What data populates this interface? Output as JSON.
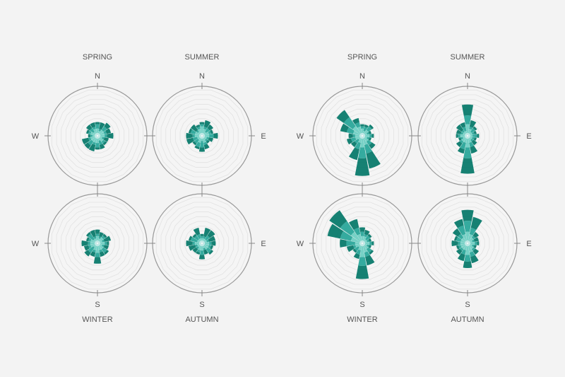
{
  "chart_data": {
    "type": "polar-bar",
    "description_free": true,
    "groups": [
      {
        "panels": [
          {
            "season": "SPRING",
            "compass": {
              "N": "N",
              "E": "",
              "S": "",
              "W": "W"
            },
            "sectors": [
              [
                2,
                4,
                5
              ],
              [
                1,
                2,
                5
              ],
              [
                2,
                4,
                6
              ],
              [
                2,
                3,
                5
              ],
              [
                2,
                3,
                6
              ],
              [
                1,
                2,
                4
              ],
              [
                2,
                3,
                4
              ],
              [
                1,
                3,
                5
              ],
              [
                2,
                4,
                5
              ],
              [
                2,
                3,
                6
              ],
              [
                2,
                4,
                6
              ],
              [
                2,
                3,
                6
              ],
              [
                1,
                2,
                3
              ],
              [
                2,
                3,
                4
              ],
              [
                1,
                3,
                5
              ],
              [
                2,
                3,
                5
              ]
            ]
          },
          {
            "season": "SUMMER",
            "compass": {
              "N": "N",
              "E": "E",
              "S": "",
              "W": ""
            },
            "sectors": [
              [
                3,
                4,
                5
              ],
              [
                2,
                3,
                6
              ],
              [
                1,
                3,
                5
              ],
              [
                2,
                3,
                4
              ],
              [
                2,
                4,
                6
              ],
              [
                1,
                2,
                4
              ],
              [
                1,
                2,
                3
              ],
              [
                2,
                3,
                5
              ],
              [
                1,
                4,
                6
              ],
              [
                2,
                4,
                5
              ],
              [
                1,
                3,
                4
              ],
              [
                1,
                3,
                6
              ],
              [
                2,
                3,
                6
              ],
              [
                2,
                4,
                5
              ],
              [
                1,
                2,
                5
              ],
              [
                2,
                3,
                4
              ]
            ]
          },
          {
            "season": "WINTER",
            "compass": {
              "N": "",
              "E": "",
              "S": "S",
              "W": "W"
            },
            "sectors": [
              [
                2,
                3,
                5
              ],
              [
                1,
                2,
                4
              ],
              [
                2,
                3,
                4
              ],
              [
                1,
                2,
                5
              ],
              [
                2,
                3,
                4
              ],
              [
                1,
                2,
                4
              ],
              [
                2,
                4,
                5
              ],
              [
                2,
                3,
                5
              ],
              [
                3,
                5,
                8
              ],
              [
                2,
                3,
                5
              ],
              [
                1,
                4,
                6
              ],
              [
                2,
                3,
                5
              ],
              [
                2,
                3,
                6
              ],
              [
                2,
                3,
                4
              ],
              [
                1,
                4,
                5
              ],
              [
                1,
                2,
                5
              ]
            ]
          },
          {
            "season": "AUTUMN",
            "compass": {
              "N": "",
              "E": "E",
              "S": "S",
              "W": ""
            },
            "sectors": [
              [
                1,
                2,
                3
              ],
              [
                1,
                2,
                6
              ],
              [
                1,
                3,
                6
              ],
              [
                1,
                2,
                5
              ],
              [
                2,
                3,
                5
              ],
              [
                2,
                3,
                4
              ],
              [
                2,
                4,
                5
              ],
              [
                1,
                2,
                4
              ],
              [
                2,
                4,
                6
              ],
              [
                2,
                3,
                4
              ],
              [
                1,
                2,
                4
              ],
              [
                1,
                2,
                5
              ],
              [
                2,
                3,
                6
              ],
              [
                1,
                4,
                5
              ],
              [
                1,
                3,
                4
              ],
              [
                1,
                3,
                6
              ]
            ]
          }
        ]
      },
      {
        "panels": [
          {
            "season": "SPRING",
            "compass": {
              "N": "N",
              "E": "",
              "S": "",
              "W": "W"
            },
            "sectors": [
              [
                2,
                3,
                4
              ],
              [
                1,
                3,
                4
              ],
              [
                2,
                4,
                5
              ],
              [
                1,
                2,
                3
              ],
              [
                2,
                3,
                4
              ],
              [
                1,
                2,
                3
              ],
              [
                2,
                4,
                6
              ],
              [
                3,
                7,
                14
              ],
              [
                4,
                9,
                17
              ],
              [
                2,
                5,
                10
              ],
              [
                1,
                3,
                5
              ],
              [
                2,
                4,
                6
              ],
              [
                2,
                3,
                5
              ],
              [
                3,
                6,
                9
              ],
              [
                4,
                9,
                13
              ],
              [
                3,
                5,
                7
              ]
            ]
          },
          {
            "season": "SUMMER",
            "compass": {
              "N": "N",
              "E": "E",
              "S": "",
              "W": ""
            },
            "sectors": [
              [
                4,
                8,
                13
              ],
              [
                2,
                3,
                6
              ],
              [
                1,
                3,
                4
              ],
              [
                1,
                2,
                3
              ],
              [
                1,
                3,
                4
              ],
              [
                1,
                2,
                3
              ],
              [
                1,
                2,
                4
              ],
              [
                2,
                4,
                7
              ],
              [
                4,
                9,
                16
              ],
              [
                2,
                5,
                7
              ],
              [
                2,
                3,
                5
              ],
              [
                1,
                2,
                3
              ],
              [
                2,
                3,
                4
              ],
              [
                1,
                2,
                4
              ],
              [
                1,
                2,
                5
              ],
              [
                1,
                3,
                5
              ]
            ]
          },
          {
            "season": "WINTER",
            "compass": {
              "N": "",
              "E": "",
              "S": "S",
              "W": "W"
            },
            "sectors": [
              [
                2,
                4,
                6
              ],
              [
                2,
                3,
                5
              ],
              [
                1,
                3,
                4
              ],
              [
                1,
                2,
                3
              ],
              [
                2,
                3,
                4
              ],
              [
                1,
                2,
                3
              ],
              [
                2,
                4,
                5
              ],
              [
                3,
                5,
                9
              ],
              [
                5,
                9,
                15
              ],
              [
                2,
                4,
                6
              ],
              [
                1,
                3,
                4
              ],
              [
                2,
                3,
                6
              ],
              [
                2,
                6,
                9
              ],
              [
                4,
                9,
                15
              ],
              [
                5,
                11,
                17
              ],
              [
                3,
                6,
                10
              ]
            ]
          },
          {
            "season": "AUTUMN",
            "compass": {
              "N": "",
              "E": "E",
              "S": "S",
              "W": ""
            },
            "sectors": [
              [
                4,
                9,
                14
              ],
              [
                3,
                6,
                11
              ],
              [
                2,
                3,
                5
              ],
              [
                1,
                2,
                4
              ],
              [
                2,
                3,
                4
              ],
              [
                1,
                2,
                3
              ],
              [
                2,
                3,
                5
              ],
              [
                3,
                5,
                8
              ],
              [
                4,
                7,
                10
              ],
              [
                2,
                4,
                7
              ],
              [
                2,
                3,
                5
              ],
              [
                2,
                3,
                4
              ],
              [
                2,
                3,
                6
              ],
              [
                2,
                4,
                5
              ],
              [
                2,
                4,
                7
              ],
              [
                3,
                7,
                10
              ]
            ]
          }
        ]
      }
    ],
    "colors": [
      "#b9e6e3",
      "#6fcfc3",
      "#2aa79a",
      "#0a7a6c"
    ],
    "grid": true
  }
}
